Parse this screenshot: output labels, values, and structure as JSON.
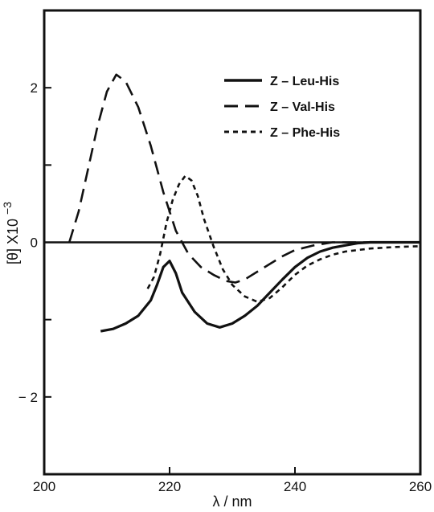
{
  "chart_data": {
    "type": "line",
    "xlabel": "λ / nm",
    "ylabel": "[θ] X10",
    "ylabel_exponent": "−3",
    "xlim": [
      200,
      260
    ],
    "ylim": [
      -3,
      3
    ],
    "x_ticks": [
      200,
      220,
      240,
      260
    ],
    "x_tick_labels": [
      "200",
      "220",
      "240",
      "260"
    ],
    "y_ticks": [
      2,
      1,
      0,
      -1,
      -2
    ],
    "y_tick_labels": [
      "2",
      "",
      "0",
      "",
      "− 2"
    ],
    "zero_line": true,
    "grid": false,
    "legend_position": "top-right",
    "series": [
      {
        "name": "Z – Leu-His",
        "style": "solid",
        "color": "#111111",
        "points": [
          [
            209,
            -1.15
          ],
          [
            211,
            -1.12
          ],
          [
            213,
            -1.05
          ],
          [
            215,
            -0.95
          ],
          [
            217,
            -0.75
          ],
          [
            218,
            -0.55
          ],
          [
            219,
            -0.32
          ],
          [
            220,
            -0.24
          ],
          [
            221,
            -0.4
          ],
          [
            222,
            -0.65
          ],
          [
            224,
            -0.9
          ],
          [
            226,
            -1.05
          ],
          [
            228,
            -1.1
          ],
          [
            230,
            -1.05
          ],
          [
            232,
            -0.95
          ],
          [
            234,
            -0.82
          ],
          [
            236,
            -0.65
          ],
          [
            238,
            -0.48
          ],
          [
            240,
            -0.32
          ],
          [
            242,
            -0.2
          ],
          [
            244,
            -0.12
          ],
          [
            246,
            -0.07
          ],
          [
            248,
            -0.04
          ],
          [
            250,
            -0.01
          ],
          [
            252,
            0.0
          ],
          [
            260,
            0.0
          ]
        ]
      },
      {
        "name": "Z – Val-His",
        "style": "long-dash",
        "color": "#111111",
        "points": [
          [
            204,
            0.0
          ],
          [
            205.5,
            0.4
          ],
          [
            207,
            0.95
          ],
          [
            208.5,
            1.5
          ],
          [
            210,
            1.95
          ],
          [
            211.5,
            2.17
          ],
          [
            213,
            2.08
          ],
          [
            215,
            1.75
          ],
          [
            217,
            1.25
          ],
          [
            219,
            0.65
          ],
          [
            221,
            0.15
          ],
          [
            223,
            -0.15
          ],
          [
            225,
            -0.32
          ],
          [
            227,
            -0.42
          ],
          [
            229,
            -0.5
          ],
          [
            230.5,
            -0.52
          ],
          [
            232,
            -0.48
          ],
          [
            234,
            -0.38
          ],
          [
            236,
            -0.28
          ],
          [
            238,
            -0.18
          ],
          [
            240,
            -0.1
          ],
          [
            243,
            -0.04
          ],
          [
            246,
            0.0
          ],
          [
            260,
            0.0
          ]
        ]
      },
      {
        "name": "Z – Phe-His",
        "style": "short-dash",
        "color": "#111111",
        "points": [
          [
            216.5,
            -0.6
          ],
          [
            217.5,
            -0.45
          ],
          [
            218.5,
            -0.15
          ],
          [
            219.5,
            0.25
          ],
          [
            220.5,
            0.55
          ],
          [
            221.5,
            0.75
          ],
          [
            222.5,
            0.86
          ],
          [
            223.5,
            0.8
          ],
          [
            224.5,
            0.6
          ],
          [
            225.5,
            0.3
          ],
          [
            227,
            -0.05
          ],
          [
            228.5,
            -0.35
          ],
          [
            230,
            -0.55
          ],
          [
            232,
            -0.7
          ],
          [
            234,
            -0.77
          ],
          [
            236,
            -0.72
          ],
          [
            238,
            -0.58
          ],
          [
            240,
            -0.42
          ],
          [
            242,
            -0.3
          ],
          [
            244,
            -0.22
          ],
          [
            246,
            -0.16
          ],
          [
            248,
            -0.12
          ],
          [
            250,
            -0.1
          ],
          [
            252,
            -0.08
          ],
          [
            256,
            -0.06
          ],
          [
            260,
            -0.05
          ]
        ]
      }
    ]
  }
}
